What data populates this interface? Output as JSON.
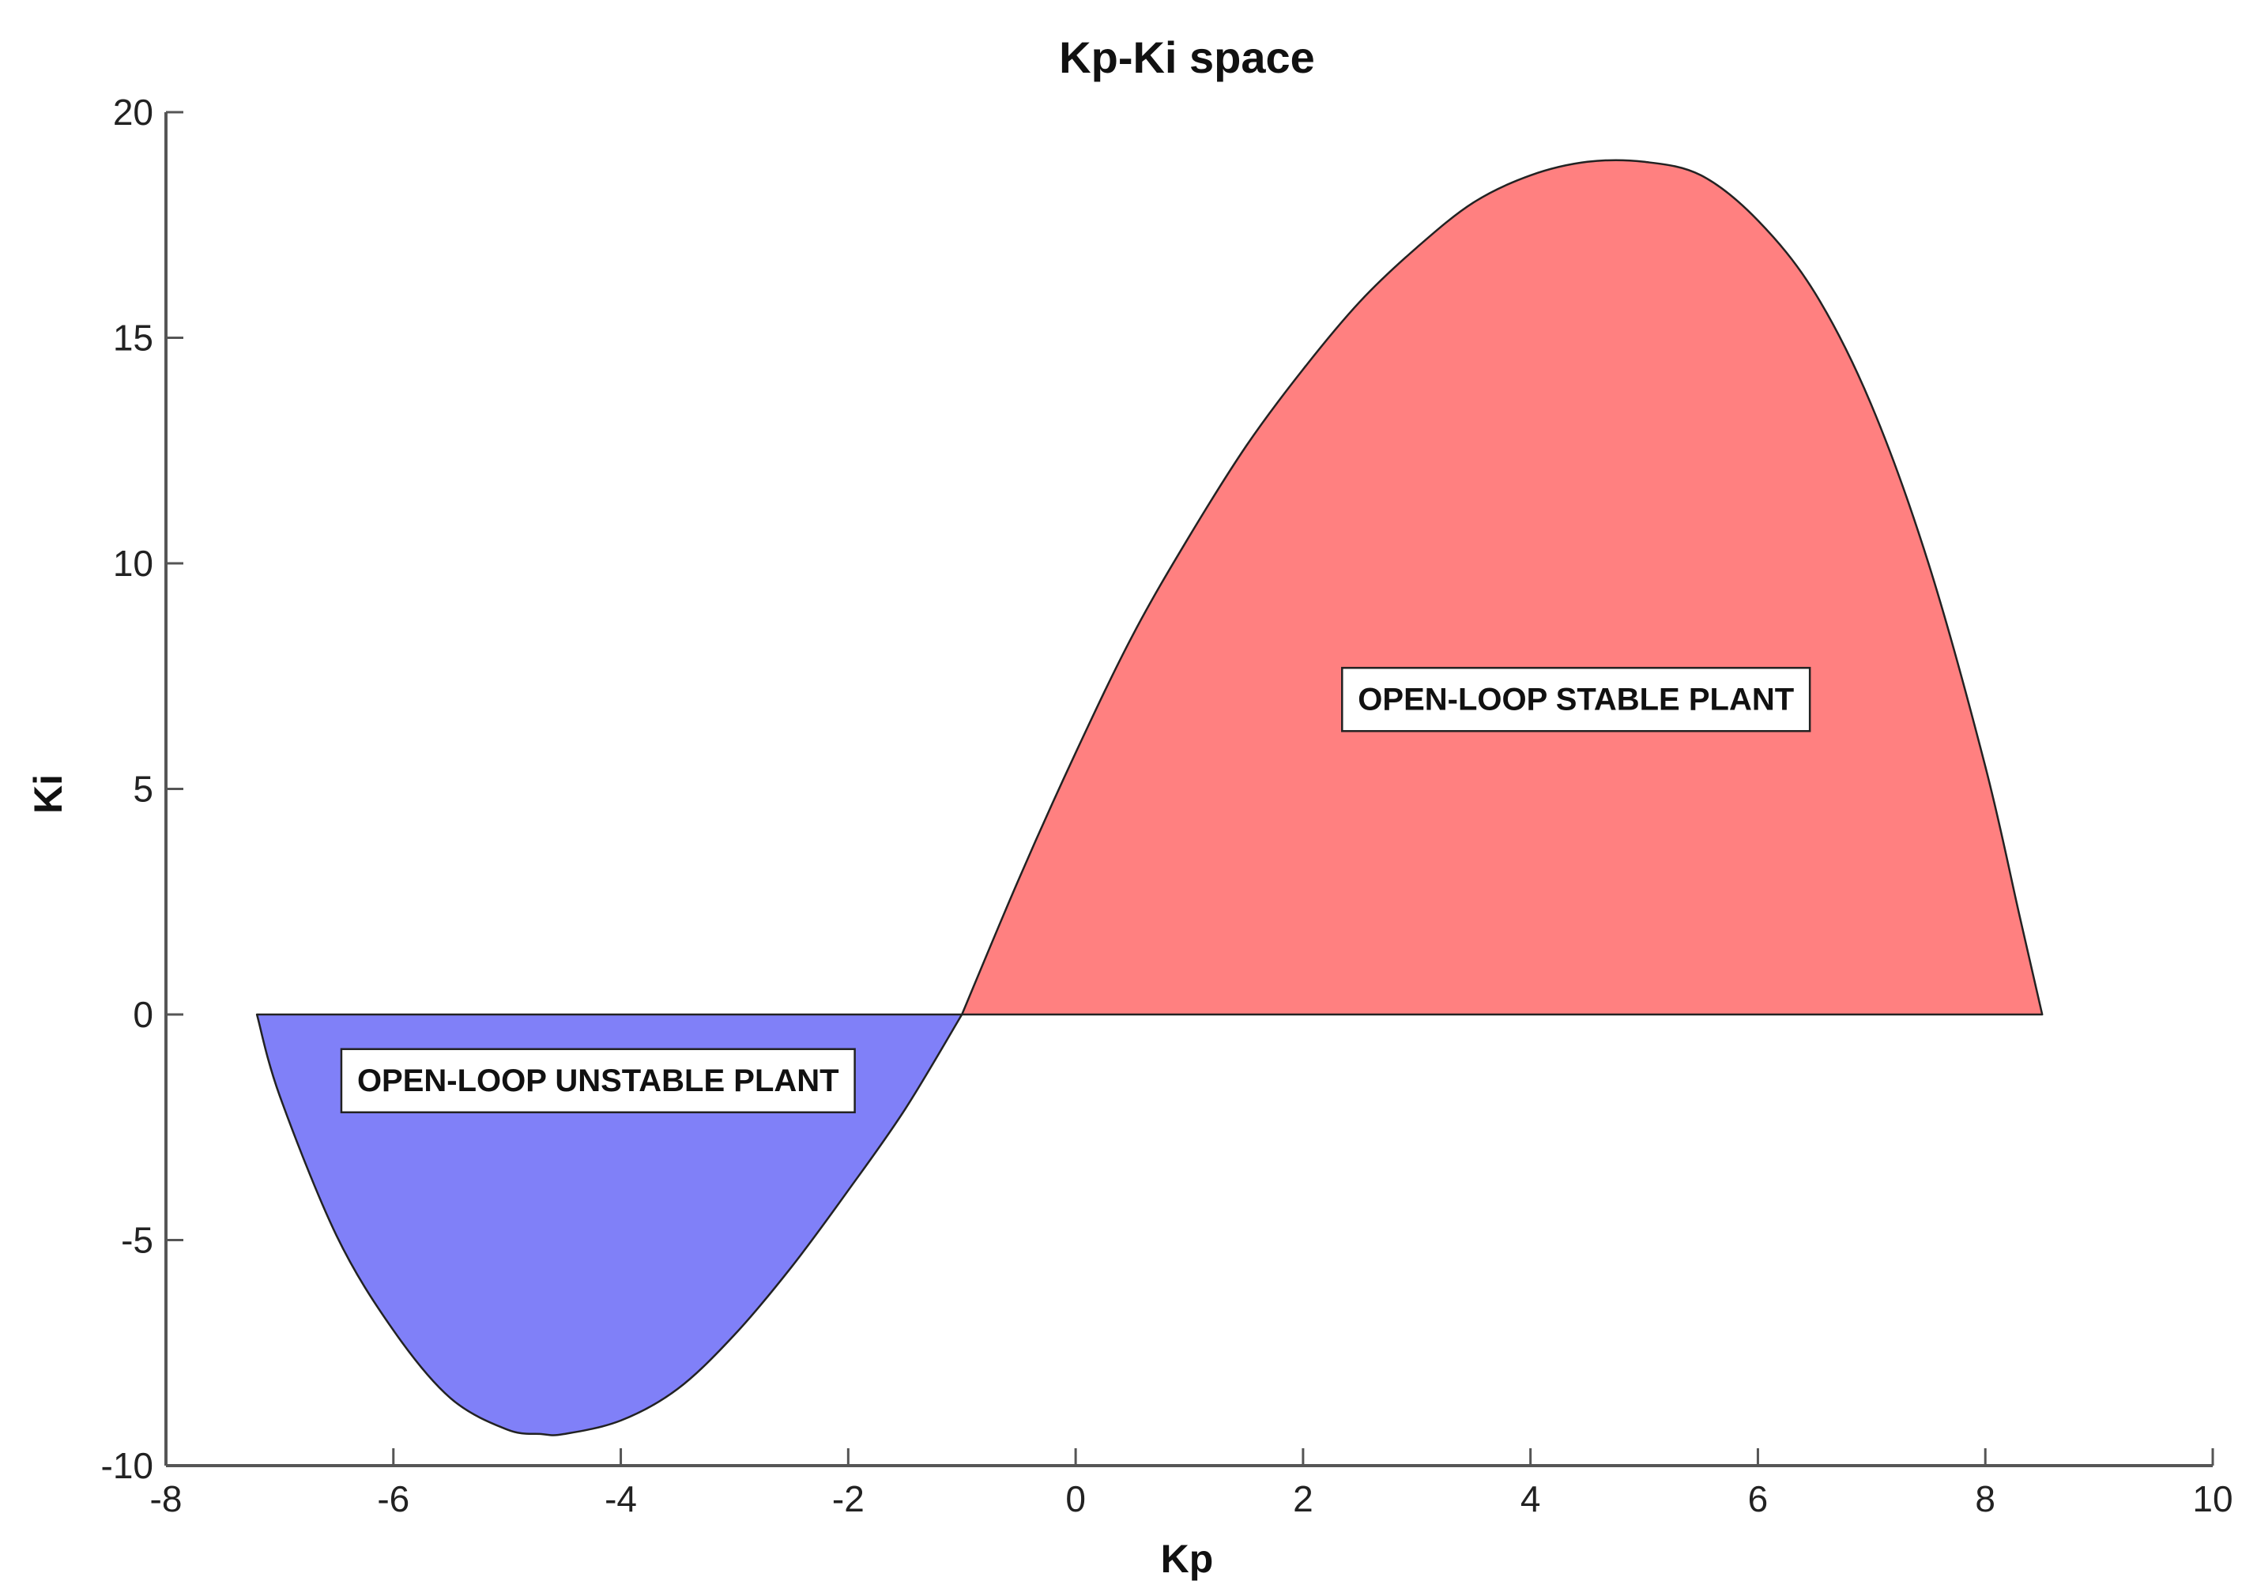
{
  "chart_data": {
    "type": "area",
    "title": "Kp-Ki space",
    "xlabel": "Kp",
    "ylabel": "Ki",
    "xlim": [
      -8,
      10
    ],
    "ylim": [
      -10,
      20
    ],
    "xticks": [
      "-8",
      "-6",
      "-4",
      "-2",
      "0",
      "2",
      "4",
      "6",
      "8",
      "10"
    ],
    "yticks": [
      "-10",
      "-5",
      "0",
      "5",
      "10",
      "15",
      "20"
    ],
    "grid": false,
    "colors": {
      "stable_fill": "#ff8080",
      "unstable_fill": "#8080f8",
      "outline": "#222222",
      "axis": "#555555"
    },
    "regions": [
      {
        "kind": "stable",
        "points": [
          [
            -1.0,
            0.0
          ],
          [
            -0.5,
            3.0
          ],
          [
            0.0,
            5.8
          ],
          [
            0.5,
            8.4
          ],
          [
            1.0,
            10.6
          ],
          [
            1.5,
            12.6
          ],
          [
            2.0,
            14.3
          ],
          [
            2.5,
            15.8
          ],
          [
            3.0,
            17.0
          ],
          [
            3.5,
            18.0
          ],
          [
            4.0,
            18.6
          ],
          [
            4.5,
            18.9
          ],
          [
            5.0,
            18.9
          ],
          [
            5.5,
            18.6
          ],
          [
            6.0,
            17.6
          ],
          [
            6.5,
            16.0
          ],
          [
            7.0,
            13.5
          ],
          [
            7.5,
            10.0
          ],
          [
            8.0,
            5.5
          ],
          [
            8.3,
            2.2
          ],
          [
            8.5,
            0.0
          ]
        ]
      },
      {
        "kind": "unstable",
        "points": [
          [
            -7.2,
            0.0
          ],
          [
            -7.0,
            -1.8
          ],
          [
            -6.5,
            -4.9
          ],
          [
            -6.0,
            -7.0
          ],
          [
            -5.5,
            -8.5
          ],
          [
            -5.0,
            -9.2
          ],
          [
            -4.7,
            -9.3
          ],
          [
            -4.5,
            -9.3
          ],
          [
            -4.0,
            -9.0
          ],
          [
            -3.5,
            -8.3
          ],
          [
            -3.0,
            -7.1
          ],
          [
            -2.5,
            -5.6
          ],
          [
            -2.0,
            -3.9
          ],
          [
            -1.5,
            -2.1
          ],
          [
            -1.0,
            0.0
          ]
        ]
      }
    ],
    "annotations": [
      {
        "text": "OPEN-LOOP STABLE PLANT",
        "x": 4.4,
        "y": 7.0
      },
      {
        "text": "OPEN-LOOP UNSTABLE PLANT",
        "x": -4.2,
        "y": -1.45
      }
    ]
  }
}
